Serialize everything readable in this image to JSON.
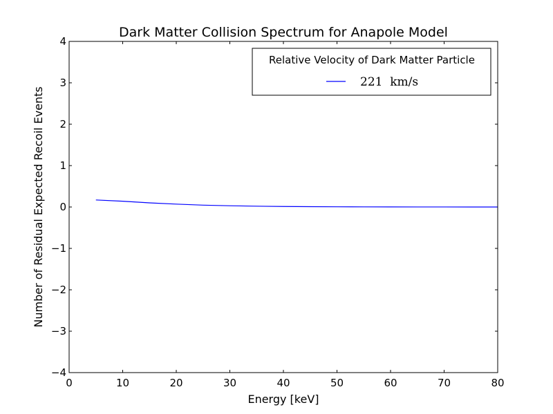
{
  "chart_data": {
    "type": "line",
    "title": "Dark Matter Collision Spectrum for Anapole Model",
    "xlabel": "Energy [keV]",
    "ylabel": "Number of Residual Expected Recoil Events",
    "xlim": [
      0,
      80
    ],
    "ylim": [
      -4,
      4
    ],
    "xticks": [
      "0",
      "10",
      "20",
      "30",
      "40",
      "50",
      "60",
      "70",
      "80"
    ],
    "yticks": [
      "4",
      "3",
      "2",
      "1",
      "0",
      "−1",
      "−2",
      "−3",
      "−4"
    ],
    "xtick_values": [
      0,
      10,
      20,
      30,
      40,
      50,
      60,
      70,
      80
    ],
    "ytick_values": [
      4,
      3,
      2,
      1,
      0,
      -1,
      -2,
      -3,
      -4
    ],
    "grid": false,
    "legend": {
      "title": "Relative Velocity of Dark Matter Particle",
      "placement": "top-right",
      "entries": [
        "221  km/s"
      ]
    },
    "series": [
      {
        "name": "221  km/s",
        "color": "#0000ff",
        "x": [
          5,
          10,
          15,
          20,
          25,
          30,
          35,
          40,
          45,
          50,
          55,
          60,
          65,
          70,
          75,
          80
        ],
        "y": [
          0.17,
          0.14,
          0.1,
          0.07,
          0.045,
          0.03,
          0.02,
          0.012,
          0.008,
          0.005,
          0.003,
          0.002,
          0.001,
          0.001,
          0.0005,
          0.0
        ]
      }
    ]
  }
}
